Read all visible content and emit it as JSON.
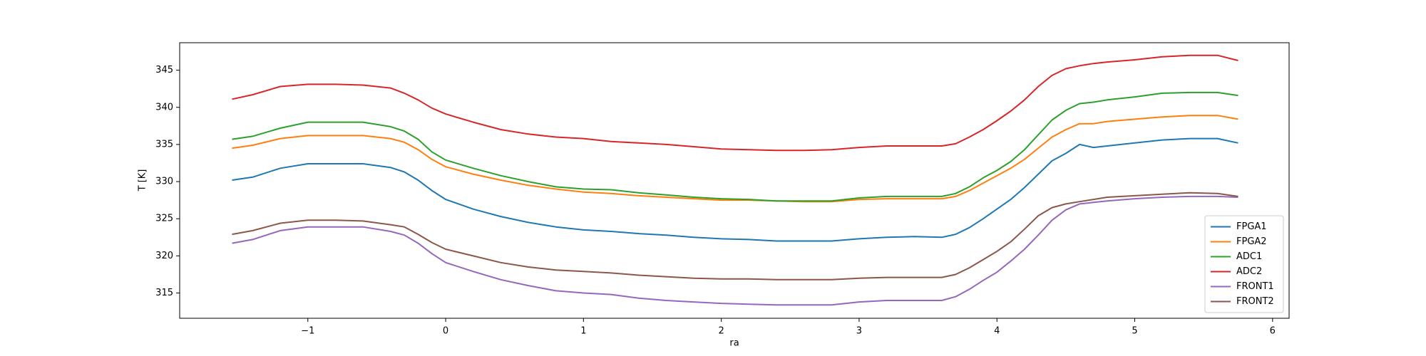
{
  "chart_data": {
    "type": "line",
    "xlabel": "ra",
    "ylabel": "T [K]",
    "x": [
      -1.55,
      -1.4,
      -1.2,
      -1.0,
      -0.8,
      -0.6,
      -0.4,
      -0.3,
      -0.2,
      -0.1,
      0,
      0.2,
      0.4,
      0.6,
      0.8,
      1.0,
      1.2,
      1.4,
      1.6,
      1.8,
      2.0,
      2.2,
      2.4,
      2.6,
      2.8,
      3.0,
      3.2,
      3.4,
      3.6,
      3.7,
      3.8,
      3.9,
      4.0,
      4.1,
      4.2,
      4.3,
      4.4,
      4.5,
      4.6,
      4.7,
      4.8,
      5.0,
      5.2,
      5.4,
      5.6,
      5.75
    ],
    "series": [
      {
        "name": "FPGA1",
        "color": "#1f77b4",
        "values": [
          330.2,
          330.6,
          331.8,
          332.4,
          332.4,
          332.4,
          331.9,
          331.3,
          330.2,
          328.8,
          327.6,
          326.3,
          325.3,
          324.5,
          323.9,
          323.5,
          323.3,
          323.0,
          322.8,
          322.5,
          322.3,
          322.2,
          322.0,
          322.0,
          322.0,
          322.3,
          322.5,
          322.6,
          322.5,
          322.9,
          323.8,
          325.0,
          326.3,
          327.6,
          329.2,
          331.0,
          332.8,
          333.8,
          335.0,
          334.6,
          334.8,
          335.2,
          335.6,
          335.8,
          335.8,
          335.2
        ]
      },
      {
        "name": "FPGA2",
        "color": "#ff7f0e",
        "values": [
          334.5,
          334.9,
          335.8,
          336.2,
          336.2,
          336.2,
          335.8,
          335.3,
          334.3,
          333.0,
          332.0,
          331.0,
          330.2,
          329.5,
          329.0,
          328.6,
          328.4,
          328.1,
          327.9,
          327.7,
          327.5,
          327.5,
          327.4,
          327.3,
          327.3,
          327.6,
          327.7,
          327.7,
          327.7,
          328.0,
          328.8,
          329.8,
          330.8,
          331.8,
          333.0,
          334.5,
          336.0,
          337.0,
          337.8,
          337.8,
          338.1,
          338.4,
          338.7,
          338.9,
          338.9,
          338.4
        ]
      },
      {
        "name": "ADC1",
        "color": "#2ca02c",
        "values": [
          335.7,
          336.1,
          337.2,
          338.0,
          338.0,
          338.0,
          337.4,
          336.8,
          335.7,
          334.0,
          332.9,
          331.8,
          330.8,
          330.0,
          329.3,
          329.0,
          328.9,
          328.5,
          328.2,
          327.9,
          327.7,
          327.6,
          327.4,
          327.4,
          327.4,
          327.8,
          328.0,
          328.0,
          328.0,
          328.4,
          329.3,
          330.5,
          331.5,
          332.7,
          334.3,
          336.3,
          338.3,
          339.6,
          340.5,
          340.7,
          341.0,
          341.4,
          341.9,
          342.0,
          342.0,
          341.6
        ]
      },
      {
        "name": "ADC2",
        "color": "#d62728",
        "values": [
          341.1,
          341.7,
          342.8,
          343.1,
          343.1,
          343.0,
          342.6,
          341.9,
          341.0,
          339.9,
          339.1,
          338.0,
          337.0,
          336.4,
          336.0,
          335.8,
          335.4,
          335.2,
          335.0,
          334.7,
          334.4,
          334.3,
          334.2,
          334.2,
          334.3,
          334.6,
          334.8,
          334.8,
          334.8,
          335.1,
          336.0,
          337.0,
          338.2,
          339.5,
          341.0,
          342.8,
          344.3,
          345.2,
          345.6,
          345.9,
          346.1,
          346.4,
          346.8,
          347.0,
          347.0,
          346.3
        ]
      },
      {
        "name": "FRONT1",
        "color": "#9467bd",
        "values": [
          321.7,
          322.2,
          323.4,
          323.9,
          323.9,
          323.9,
          323.3,
          322.8,
          321.7,
          320.3,
          319.1,
          317.9,
          316.8,
          316.0,
          315.3,
          315.0,
          314.8,
          314.3,
          314.0,
          313.8,
          313.6,
          313.5,
          313.4,
          313.4,
          313.4,
          313.8,
          314.0,
          314.0,
          314.0,
          314.5,
          315.5,
          316.7,
          317.8,
          319.3,
          320.9,
          322.8,
          324.8,
          326.2,
          327.0,
          327.2,
          327.4,
          327.7,
          327.9,
          328.0,
          328.0,
          327.9
        ]
      },
      {
        "name": "FRONT2",
        "color": "#8c564b",
        "values": [
          322.9,
          323.4,
          324.4,
          324.8,
          324.8,
          324.7,
          324.2,
          323.9,
          322.9,
          321.8,
          320.9,
          320.0,
          319.1,
          318.5,
          318.1,
          317.9,
          317.7,
          317.4,
          317.2,
          317.0,
          316.9,
          316.9,
          316.8,
          316.8,
          316.8,
          317.0,
          317.1,
          317.1,
          317.1,
          317.5,
          318.4,
          319.5,
          320.6,
          321.9,
          323.6,
          325.4,
          326.5,
          327.0,
          327.3,
          327.6,
          327.9,
          328.1,
          328.3,
          328.5,
          328.4,
          328.0
        ]
      }
    ],
    "xlim": [
      -1.93,
      6.12
    ],
    "xticks": [
      {
        "value": -1,
        "label": "−1"
      },
      0,
      1,
      2,
      3,
      4,
      5,
      6
    ],
    "ylim": [
      311.6,
      348.7
    ],
    "yticks": [
      315,
      320,
      325,
      330,
      335,
      340,
      345
    ],
    "legend": "lower right"
  }
}
